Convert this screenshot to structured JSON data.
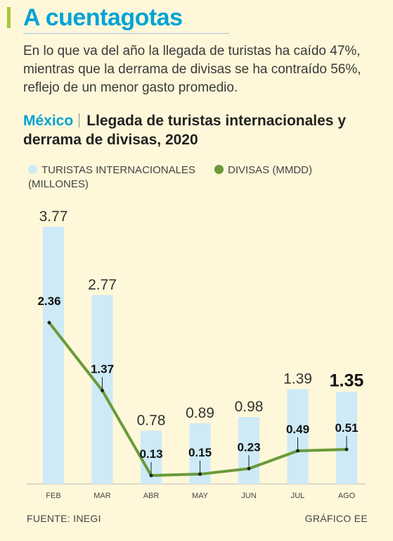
{
  "headline": "A cuentagotas",
  "summary": "En lo que va del año la llegada de turistas ha caído 47%, mientras que la derrama de divisas se ha contraído 56%, reflejo de un menor gasto promedio.",
  "chart_title": {
    "country": "México",
    "title": "Llegada de turistas internaciona­les y derrama de divisas, 2020"
  },
  "footer": {
    "source": "FUENTE: INEGI",
    "credit": "GRÁFICO EE"
  },
  "colors": {
    "accent": "#a6c93a",
    "headline": "#00a3d7",
    "bars": "#cdeaf6",
    "line": "#6a9a3a",
    "background": "#fff7d9"
  },
  "chart_data": {
    "type": "bar",
    "categories": [
      "FEB",
      "MAR",
      "ABR",
      "MAY",
      "JUN",
      "JUL",
      "AGO"
    ],
    "series": [
      {
        "name": "TURISTAS INTERNACIONALES (MILLONES)",
        "type": "bar",
        "values": [
          3.77,
          2.77,
          0.78,
          0.89,
          0.98,
          1.39,
          1.35
        ],
        "labels": [
          "3.77",
          "2.77",
          "0.78",
          "0.89",
          "0.98",
          "1.39",
          "1.35"
        ]
      },
      {
        "name": "DIVISAS (MMDD)",
        "type": "line",
        "values": [
          2.36,
          1.37,
          0.13,
          0.15,
          0.23,
          0.49,
          0.51
        ],
        "labels": [
          "2.36",
          "1.37",
          "0.13",
          "0.15",
          "0.23",
          "0.49",
          "0.51"
        ]
      }
    ],
    "highlight": "AGO",
    "grid": false,
    "legend_position": "top-left"
  }
}
